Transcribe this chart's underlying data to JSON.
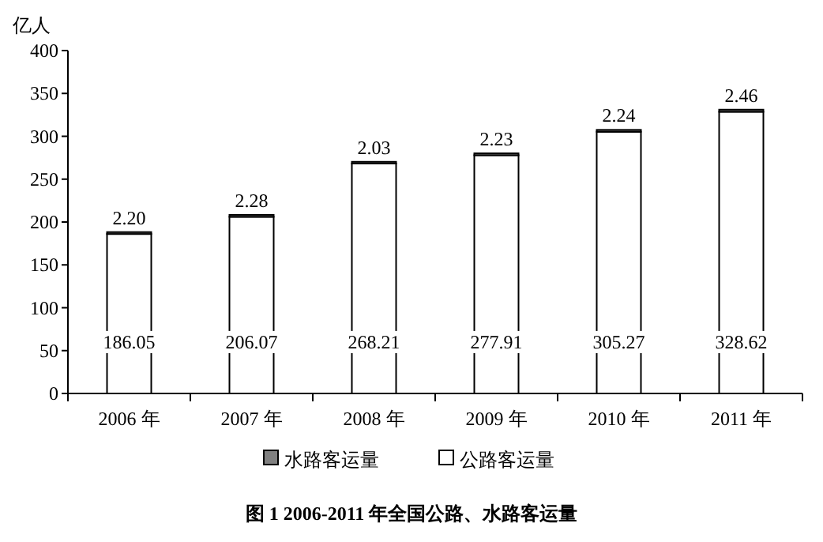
{
  "chart_data": {
    "type": "bar",
    "title": "图 1 2006-2011 年全国公路、水路客运量",
    "ylabel": "亿人",
    "categories": [
      "2006 年",
      "2007 年",
      "2008 年",
      "2009 年",
      "2010 年",
      "2011 年"
    ],
    "stacked": true,
    "legend": "bottom",
    "grid": false,
    "ylim": [
      0,
      400
    ],
    "yticks": [
      0,
      50,
      100,
      150,
      200,
      250,
      300,
      350,
      400
    ],
    "series": [
      {
        "name": "公路客运量",
        "color": "#ffffff",
        "values": [
          186.05,
          206.07,
          268.21,
          277.91,
          305.27,
          328.62
        ],
        "value_labels": [
          "186.05",
          "206.07",
          "268.21",
          "277.91",
          "305.27",
          "328.62"
        ]
      },
      {
        "name": "水路客运量",
        "color": "#808080",
        "values": [
          2.2,
          2.28,
          2.03,
          2.23,
          2.24,
          2.46
        ],
        "value_labels": [
          "2.20",
          "2.28",
          "2.03",
          "2.23",
          "2.24",
          "2.46"
        ]
      }
    ]
  }
}
